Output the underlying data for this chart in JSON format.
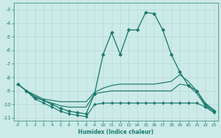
{
  "xlabel": "Humidex (Indice chaleur)",
  "background_color": "#cceae7",
  "grid_color": "#b8d8d5",
  "line_color": "#1a7a6e",
  "xlim": [
    -0.5,
    23.5
  ],
  "ylim": [
    -11.2,
    -2.5
  ],
  "xticks": [
    0,
    1,
    2,
    3,
    4,
    5,
    6,
    7,
    8,
    9,
    10,
    11,
    12,
    13,
    14,
    15,
    16,
    17,
    18,
    19,
    20,
    21,
    22,
    23
  ],
  "yticks": [
    -11,
    -10,
    -9,
    -8,
    -7,
    -6,
    -5,
    -4,
    -3
  ],
  "series": [
    {
      "x": [
        0,
        1,
        2,
        3,
        4,
        5,
        6,
        7,
        8,
        9,
        10,
        11,
        12,
        13,
        14,
        15,
        16,
        17,
        18,
        19,
        20,
        21,
        22,
        23
      ],
      "y": [
        -8.5,
        -9.0,
        -9.5,
        -9.7,
        -10.0,
        -10.3,
        -10.5,
        -10.6,
        -10.7,
        -9.2,
        -6.3,
        -4.7,
        -6.3,
        -4.5,
        -4.5,
        -3.2,
        -3.3,
        -4.5,
        -6.3,
        -7.6,
        -8.6,
        -9.0,
        -10.0,
        -10.5
      ],
      "marker": "D",
      "markersize": 2.5,
      "linewidth": 1.0
    },
    {
      "x": [
        0,
        1,
        2,
        3,
        4,
        5,
        6,
        7,
        8,
        9,
        10,
        11,
        12,
        13,
        14,
        15,
        16,
        17,
        18,
        19,
        20,
        21,
        22,
        23
      ],
      "y": [
        -8.5,
        -9.0,
        -9.3,
        -9.6,
        -9.7,
        -9.8,
        -9.8,
        -9.8,
        -9.8,
        -9.1,
        -8.8,
        -8.6,
        -8.5,
        -8.5,
        -8.5,
        -8.5,
        -8.5,
        -8.4,
        -8.3,
        -7.8,
        -8.3,
        -9.0,
        -9.9,
        -10.4
      ],
      "marker": null,
      "markersize": 0,
      "linewidth": 0.9
    },
    {
      "x": [
        0,
        1,
        2,
        3,
        4,
        5,
        6,
        7,
        8,
        9,
        10,
        11,
        12,
        13,
        14,
        15,
        16,
        17,
        18,
        19,
        20,
        21,
        22,
        23
      ],
      "y": [
        -8.5,
        -9.0,
        -9.4,
        -9.7,
        -9.9,
        -10.1,
        -10.2,
        -10.2,
        -10.2,
        -9.2,
        -9.1,
        -9.0,
        -9.0,
        -9.0,
        -9.0,
        -9.0,
        -9.0,
        -9.0,
        -9.0,
        -8.5,
        -8.6,
        -9.2,
        -10.1,
        -10.5
      ],
      "marker": null,
      "markersize": 0,
      "linewidth": 0.9
    },
    {
      "x": [
        0,
        1,
        2,
        3,
        4,
        5,
        6,
        7,
        8,
        9,
        10,
        11,
        12,
        13,
        14,
        15,
        16,
        17,
        18,
        19,
        20,
        21,
        22,
        23
      ],
      "y": [
        -8.5,
        -9.0,
        -9.6,
        -9.9,
        -10.2,
        -10.5,
        -10.7,
        -10.8,
        -10.9,
        -10.0,
        -9.9,
        -9.9,
        -9.9,
        -9.9,
        -9.9,
        -9.9,
        -9.9,
        -9.9,
        -9.9,
        -9.9,
        -9.9,
        -9.9,
        -10.2,
        -10.6
      ],
      "marker": "D",
      "markersize": 2.0,
      "linewidth": 0.9
    }
  ]
}
